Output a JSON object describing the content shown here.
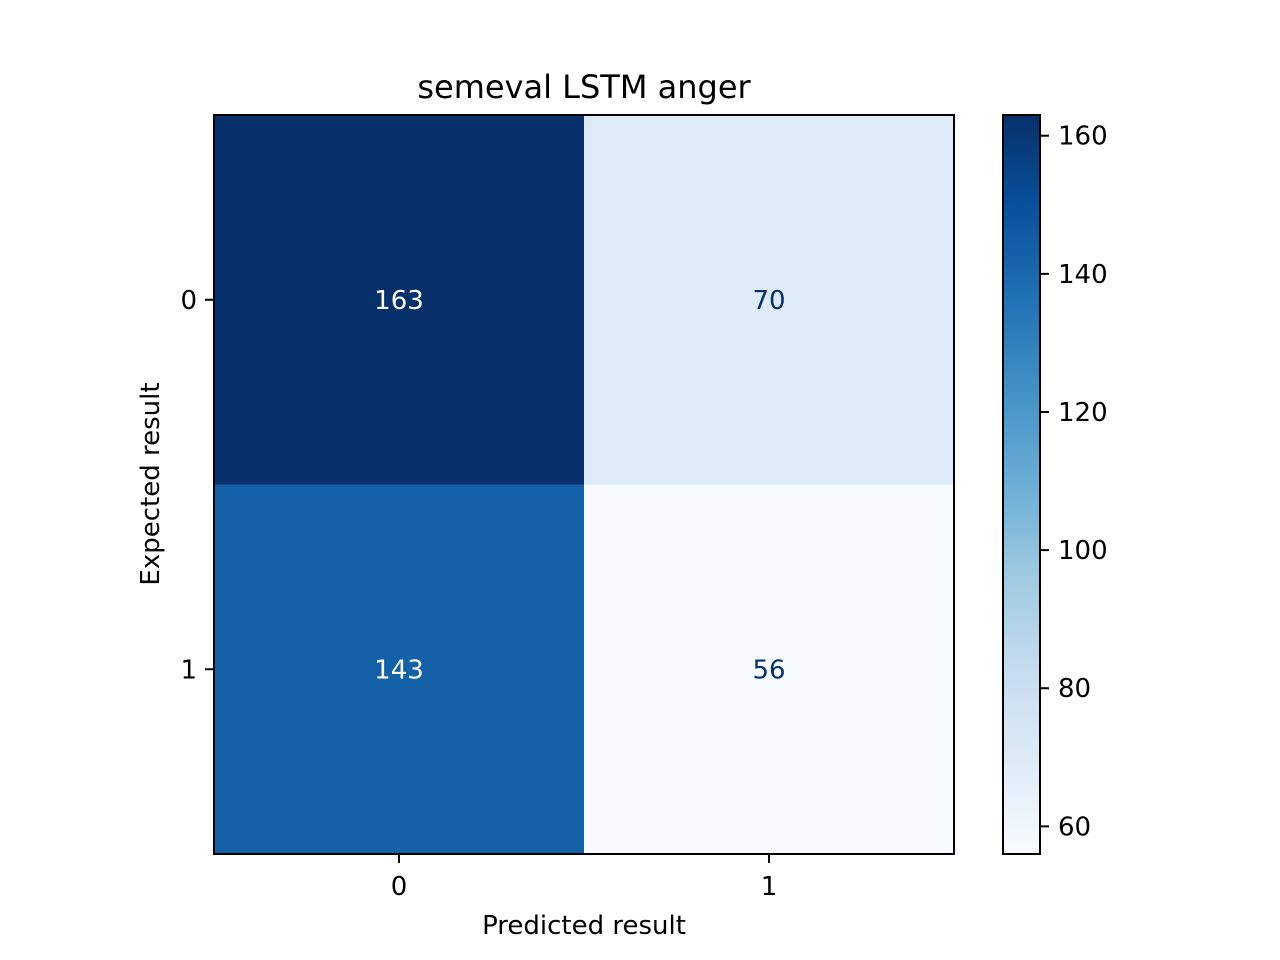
{
  "chart_data": {
    "type": "heatmap",
    "title": "semeval LSTM anger",
    "xlabel": "Predicted result",
    "ylabel": "Expected result",
    "x_categories": [
      "0",
      "1"
    ],
    "y_categories": [
      "0",
      "1"
    ],
    "values": [
      [
        163,
        70
      ],
      [
        143,
        56
      ]
    ],
    "colormap": "Blues",
    "color_range": [
      56,
      163
    ],
    "colorbar_ticks": [
      "60",
      "80",
      "100",
      "120",
      "140",
      "160"
    ],
    "grid": false
  }
}
